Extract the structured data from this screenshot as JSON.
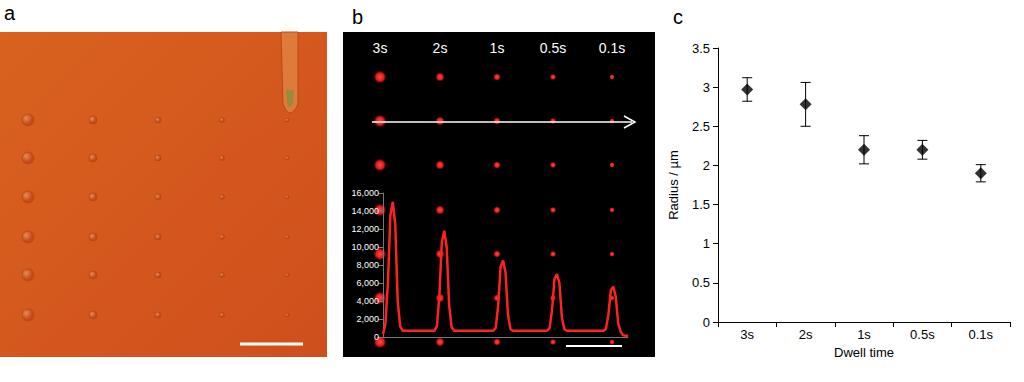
{
  "image_a": {
    "title": "a"
  },
  "image_b": {
    "column_labels": [
      "3s",
      "2s",
      "1s",
      "0.5s",
      "0.1s"
    ]
  },
  "chart_data": [
    {
      "type": "line",
      "title": "b",
      "color": "#ff2222",
      "marker": "none",
      "line_style": "solid",
      "x": [
        0,
        1,
        2,
        3,
        4,
        5,
        6,
        7,
        8,
        21,
        22,
        23,
        24,
        25,
        26,
        27,
        28,
        29,
        45,
        46,
        47,
        48,
        49,
        50,
        51,
        52,
        53,
        67,
        68,
        69,
        70,
        71,
        72,
        73,
        74,
        75,
        90,
        91,
        92,
        93,
        94,
        95,
        96,
        97,
        98,
        100
      ],
      "values": [
        300,
        1500,
        6000,
        13500,
        15000,
        12500,
        4000,
        1200,
        700,
        700,
        1200,
        4500,
        10500,
        11800,
        10000,
        3500,
        1100,
        700,
        700,
        1000,
        3500,
        7800,
        8500,
        7200,
        2500,
        900,
        700,
        700,
        1000,
        3000,
        6500,
        7000,
        6000,
        2200,
        900,
        700,
        700,
        900,
        2500,
        5200,
        5600,
        4500,
        1500,
        600,
        200,
        100
      ],
      "xlim": [
        0,
        100
      ],
      "ylim": [
        0,
        16000
      ],
      "yticks": [
        0,
        2000,
        4000,
        6000,
        8000,
        10000,
        12000,
        14000,
        16000
      ],
      "grid": false,
      "tick_labels": "y"
    },
    {
      "type": "scatter",
      "title": "c",
      "color": "#000000",
      "marker": "diamond",
      "xlabel": "Dwell time",
      "ylabel": "Radius / µm",
      "categories": [
        "3s",
        "2s",
        "1s",
        "0.5s",
        "0.1s"
      ],
      "values": [
        2.97,
        2.78,
        2.2,
        2.2,
        1.9
      ],
      "errors": [
        0.15,
        0.28,
        0.18,
        0.12,
        0.11
      ],
      "ylim": [
        0,
        3.5
      ],
      "yticks": [
        0,
        0.5,
        1,
        1.5,
        2,
        2.5,
        3,
        3.5
      ],
      "grid": false
    }
  ]
}
